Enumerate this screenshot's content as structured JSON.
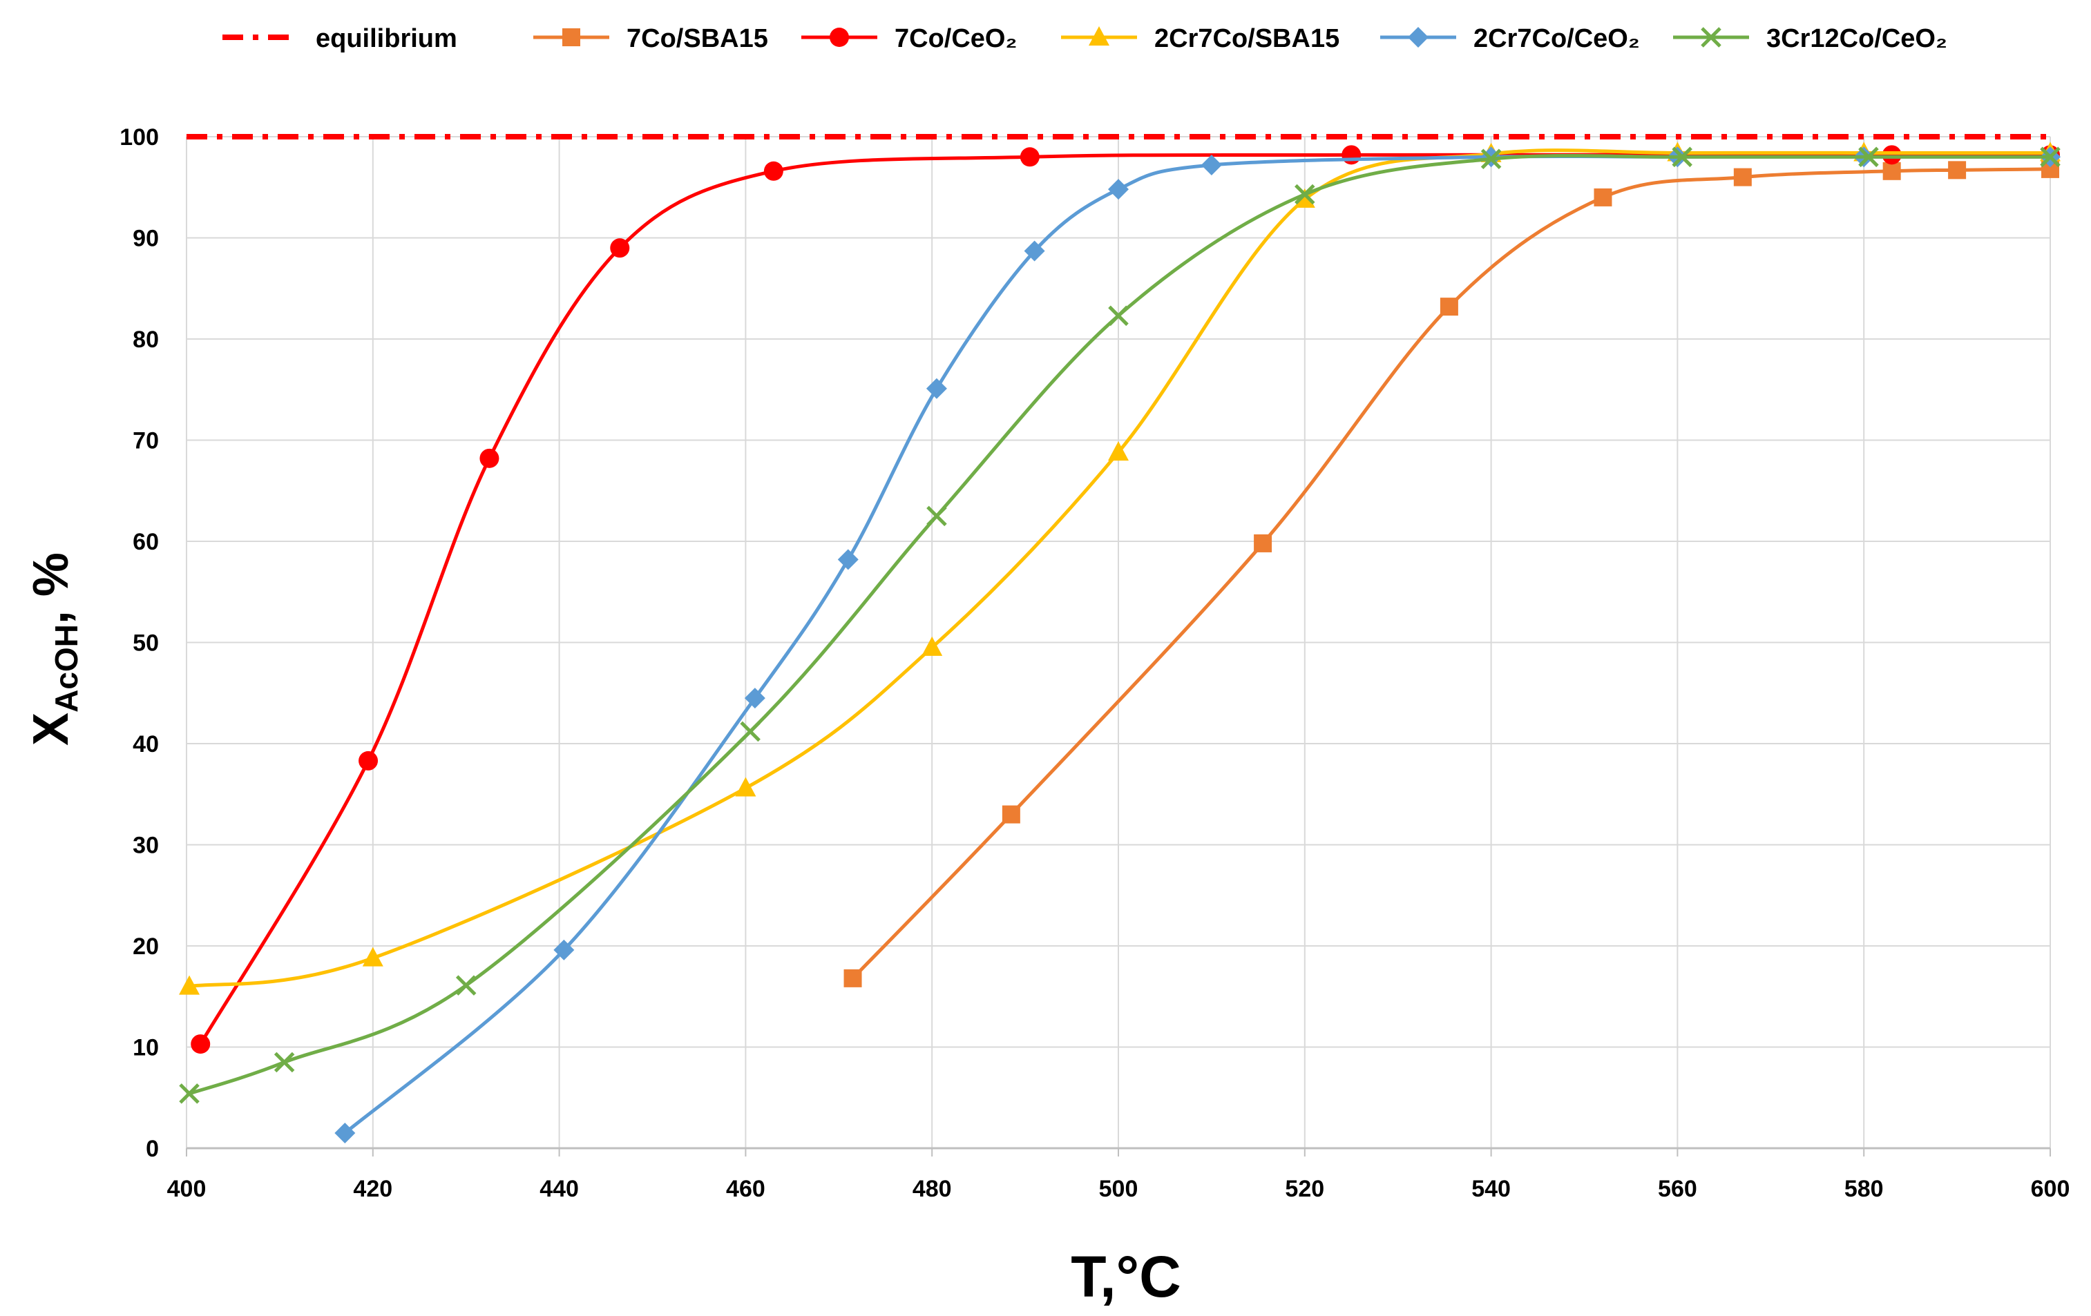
{
  "chart_data": {
    "type": "line",
    "title": "",
    "xlabel": "T,°C",
    "ylabel": {
      "main": "X",
      "subscript": "AcOH",
      "suffix": ", %"
    },
    "xlim": [
      400,
      600
    ],
    "ylim": [
      0,
      100
    ],
    "xticks": [
      400,
      420,
      440,
      460,
      480,
      500,
      520,
      540,
      560,
      580,
      600
    ],
    "yticks": [
      0,
      10,
      20,
      30,
      40,
      50,
      60,
      70,
      80,
      90,
      100
    ],
    "grid": true,
    "legend_position": "top",
    "series": [
      {
        "name": "equilibrium",
        "color": "#ff0000",
        "marker": "none",
        "dash": "dashdot",
        "x": [
          400,
          600
        ],
        "y": [
          100,
          100
        ]
      },
      {
        "name": "7Co/SBA15",
        "color": "#ed7d31",
        "marker": "square",
        "x": [
          471.5,
          488.5,
          515.5,
          535.5,
          552,
          567,
          583,
          590,
          600
        ],
        "y": [
          16.8,
          33,
          59.8,
          83.2,
          94,
          96,
          96.6,
          96.7,
          96.8
        ]
      },
      {
        "name": "7Co/CeO₂",
        "color": "#ff0000",
        "marker": "circle",
        "x": [
          401.5,
          419.5,
          432.5,
          446.5,
          463,
          490.5,
          525,
          583,
          600
        ],
        "y": [
          10.3,
          38.3,
          68.2,
          89,
          96.6,
          98,
          98.2,
          98.2,
          98.2
        ]
      },
      {
        "name": "2Cr7Co/SBA15",
        "color": "#ffc000",
        "marker": "triangle",
        "x": [
          400.3,
          420,
          460,
          480,
          500,
          520,
          540,
          560,
          580,
          600
        ],
        "y": [
          16,
          18.8,
          35.6,
          49.5,
          68.8,
          93.8,
          98.3,
          98.4,
          98.4,
          98.4
        ]
      },
      {
        "name": "2Cr7Co/CeO₂",
        "color": "#5b9bd5",
        "marker": "diamond",
        "x": [
          417,
          440.5,
          461,
          471,
          480.5,
          491,
          500,
          510,
          540,
          560,
          580,
          600
        ],
        "y": [
          1.5,
          19.6,
          44.5,
          58.2,
          75.1,
          88.7,
          94.8,
          97.2,
          98,
          98,
          98,
          98
        ]
      },
      {
        "name": "3Cr12Co/CeO₂",
        "color": "#70ad47",
        "marker": "x",
        "x": [
          400.3,
          410.5,
          430,
          460.5,
          480.5,
          500,
          520,
          540,
          560.5,
          580.5,
          600
        ],
        "y": [
          5.4,
          8.5,
          16.1,
          41.2,
          62.5,
          82.3,
          94.3,
          97.8,
          98,
          98,
          98
        ]
      }
    ]
  }
}
